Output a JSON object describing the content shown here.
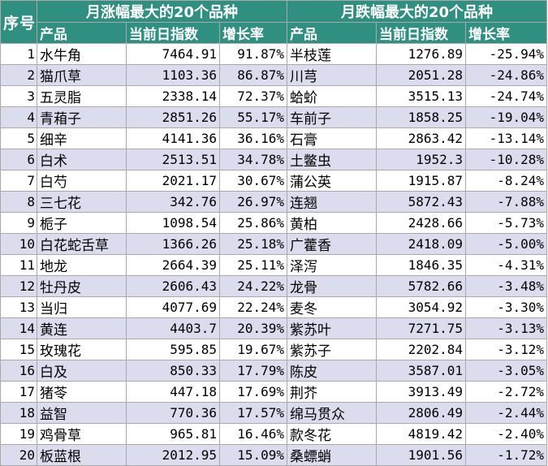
{
  "header": {
    "index_label": "序号",
    "rise_title": "月涨幅最大的20个品种",
    "fall_title": "月跌幅最大的20个品种",
    "col_product": "产品",
    "col_index": "当前日指数",
    "col_growth": "增长率"
  },
  "rows": [
    {
      "idx": "1",
      "up_name": "水牛角",
      "up_index": "7464.91",
      "up_rate": "91.87%",
      "down_name": "半枝莲",
      "down_index": "1276.89",
      "down_rate": "-25.94%"
    },
    {
      "idx": "2",
      "up_name": "猫爪草",
      "up_index": "1103.36",
      "up_rate": "86.87%",
      "down_name": "川芎",
      "down_index": "2051.28",
      "down_rate": "-24.86%"
    },
    {
      "idx": "3",
      "up_name": "五灵脂",
      "up_index": "2338.14",
      "up_rate": "72.37%",
      "down_name": "蛤蚧",
      "down_index": "3515.13",
      "down_rate": "-24.74%"
    },
    {
      "idx": "4",
      "up_name": "青葙子",
      "up_index": "2851.26",
      "up_rate": "55.17%",
      "down_name": "车前子",
      "down_index": "1858.25",
      "down_rate": "-19.04%"
    },
    {
      "idx": "5",
      "up_name": "细辛",
      "up_index": "4141.36",
      "up_rate": "36.16%",
      "down_name": "石膏",
      "down_index": "2863.42",
      "down_rate": "-13.14%"
    },
    {
      "idx": "6",
      "up_name": "白术",
      "up_index": "2513.51",
      "up_rate": "34.78%",
      "down_name": "土鳖虫",
      "down_index": "1952.3",
      "down_rate": "-10.28%"
    },
    {
      "idx": "7",
      "up_name": "白芍",
      "up_index": "2021.17",
      "up_rate": "30.67%",
      "down_name": "蒲公英",
      "down_index": "1915.87",
      "down_rate": "-8.24%"
    },
    {
      "idx": "8",
      "up_name": "三七花",
      "up_index": "342.76",
      "up_rate": "26.97%",
      "down_name": "连翘",
      "down_index": "5872.43",
      "down_rate": "-7.88%"
    },
    {
      "idx": "9",
      "up_name": "栀子",
      "up_index": "1098.54",
      "up_rate": "25.86%",
      "down_name": "黄柏",
      "down_index": "2428.66",
      "down_rate": "-5.73%"
    },
    {
      "idx": "10",
      "up_name": "白花蛇舌草",
      "up_index": "1366.26",
      "up_rate": "25.18%",
      "down_name": "广藿香",
      "down_index": "2418.09",
      "down_rate": "-5.00%"
    },
    {
      "idx": "11",
      "up_name": "地龙",
      "up_index": "2664.39",
      "up_rate": "25.11%",
      "down_name": "泽泻",
      "down_index": "1846.35",
      "down_rate": "-4.31%"
    },
    {
      "idx": "12",
      "up_name": "牡丹皮",
      "up_index": "2606.43",
      "up_rate": "24.22%",
      "down_name": "龙骨",
      "down_index": "5782.66",
      "down_rate": "-3.48%"
    },
    {
      "idx": "13",
      "up_name": "当归",
      "up_index": "4077.69",
      "up_rate": "22.24%",
      "down_name": "麦冬",
      "down_index": "3054.92",
      "down_rate": "-3.30%"
    },
    {
      "idx": "14",
      "up_name": "黄连",
      "up_index": "4403.7",
      "up_rate": "20.39%",
      "down_name": "紫苏叶",
      "down_index": "7271.75",
      "down_rate": "-3.13%"
    },
    {
      "idx": "15",
      "up_name": "玫瑰花",
      "up_index": "595.85",
      "up_rate": "19.67%",
      "down_name": "紫苏子",
      "down_index": "2202.84",
      "down_rate": "-3.12%"
    },
    {
      "idx": "16",
      "up_name": "白及",
      "up_index": "850.33",
      "up_rate": "17.79%",
      "down_name": "陈皮",
      "down_index": "3587.01",
      "down_rate": "-3.05%"
    },
    {
      "idx": "17",
      "up_name": "猪苓",
      "up_index": "447.18",
      "up_rate": "17.69%",
      "down_name": "荆芥",
      "down_index": "3913.49",
      "down_rate": "-2.72%"
    },
    {
      "idx": "18",
      "up_name": "益智",
      "up_index": "770.36",
      "up_rate": "17.57%",
      "down_name": "绵马贯众",
      "down_index": "2806.49",
      "down_rate": "-2.44%"
    },
    {
      "idx": "19",
      "up_name": "鸡骨草",
      "up_index": "965.81",
      "up_rate": "16.46%",
      "down_name": "款冬花",
      "down_index": "4819.42",
      "down_rate": "-2.40%"
    },
    {
      "idx": "20",
      "up_name": "板蓝根",
      "up_index": "2012.95",
      "up_rate": "15.09%",
      "down_name": "桑螵蛸",
      "down_index": "1901.56",
      "down_rate": "-1.72%"
    }
  ]
}
